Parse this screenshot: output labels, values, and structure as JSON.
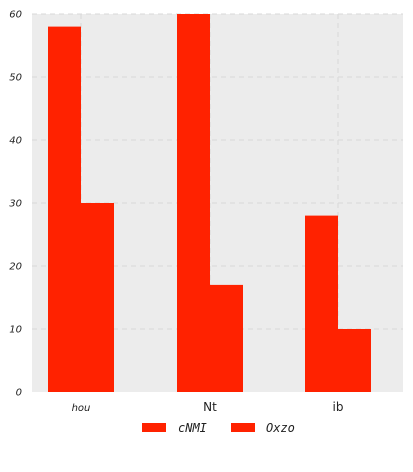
{
  "chart_data": {
    "type": "bar",
    "categories": [
      "hou",
      "Nt",
      "ib"
    ],
    "series": [
      {
        "name": "cNMI",
        "values": [
          58,
          60,
          28
        ]
      },
      {
        "name": "Oxzo",
        "values": [
          30,
          17,
          10
        ]
      }
    ],
    "ylim": [
      0,
      60
    ],
    "yticks": [
      0,
      10,
      20,
      30,
      40,
      50,
      60
    ],
    "grid": true,
    "legend": "bottom-center",
    "colors": {
      "bar": "#ff2200",
      "plot_background": "#ececec",
      "grid": "#d9d9d9"
    }
  }
}
